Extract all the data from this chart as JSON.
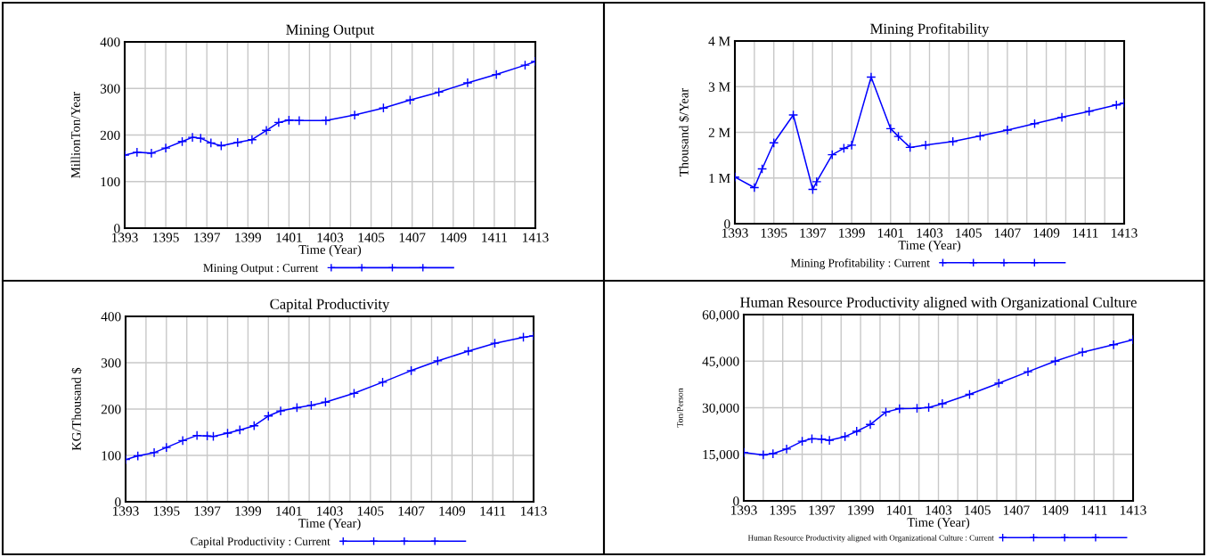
{
  "chart_data": [
    {
      "type": "line",
      "title": "Mining Output",
      "xlabel": "Time (Year)",
      "ylabel": "MillionTon/Year",
      "grid": true,
      "legend": "bottom",
      "marker": "cross",
      "line_style": "solid",
      "xlim": [
        1393,
        1413
      ],
      "xticks": [
        1393,
        {
          "value": 1394,
          "label": null
        },
        1395,
        {
          "value": 1396,
          "label": null
        },
        1397,
        {
          "value": 1398,
          "label": null
        },
        1399,
        {
          "value": 1400,
          "label": null
        },
        1401,
        {
          "value": 1402,
          "label": null
        },
        1403,
        {
          "value": 1404,
          "label": null
        },
        1405,
        {
          "value": 1406,
          "label": null
        },
        1407,
        {
          "value": 1408,
          "label": null
        },
        1409,
        {
          "value": 1410,
          "label": null
        },
        1411,
        {
          "value": 1412,
          "label": null
        },
        1413
      ],
      "ylim": [
        0,
        400
      ],
      "yticks": [
        0,
        100,
        200,
        300,
        400
      ],
      "series": [
        {
          "name": "Mining Output : Current",
          "color": "#0000ff",
          "x": [
            1393,
            1393.6,
            1394.3,
            1395,
            1395.8,
            1396.3,
            1396.7,
            1397.2,
            1397.7,
            1398.5,
            1399.2,
            1399.9,
            1400.5,
            1401,
            1401.5,
            1402.8,
            1404.2,
            1405.6,
            1406.9,
            1408.3,
            1409.7,
            1411.1,
            1412.5,
            1413
          ],
          "values": [
            157,
            163,
            161,
            172,
            186,
            195,
            193,
            183,
            177,
            184,
            190,
            210,
            227,
            232,
            231,
            231,
            243,
            258,
            275,
            292,
            312,
            330,
            350,
            358
          ]
        }
      ]
    },
    {
      "type": "line",
      "title": "Mining Profitability",
      "xlabel": "Time (Year)",
      "ylabel": "Thousand $/Year",
      "grid": true,
      "legend": "bottom",
      "marker": "cross",
      "line_style": "solid",
      "xlim": [
        1393,
        1413
      ],
      "xticks": [
        1393,
        {
          "value": 1394,
          "label": null
        },
        1395,
        {
          "value": 1396,
          "label": null
        },
        1397,
        {
          "value": 1398,
          "label": null
        },
        1399,
        {
          "value": 1400,
          "label": null
        },
        1401,
        {
          "value": 1402,
          "label": null
        },
        1403,
        {
          "value": 1404,
          "label": null
        },
        1405,
        {
          "value": 1406,
          "label": null
        },
        1407,
        {
          "value": 1408,
          "label": null
        },
        1409,
        {
          "value": 1410,
          "label": null
        },
        1411,
        {
          "value": 1412,
          "label": null
        },
        1413
      ],
      "ylim": [
        0,
        4000000
      ],
      "yticks": [
        0,
        {
          "value": 1000000,
          "label": "1 M"
        },
        {
          "value": 2000000,
          "label": "2 M"
        },
        {
          "value": 3000000,
          "label": "3 M"
        },
        {
          "value": 4000000,
          "label": "4 M"
        }
      ],
      "series": [
        {
          "name": "Mining Profitability : Current",
          "color": "#0000ff",
          "x": [
            1393,
            1394,
            1394.4,
            1395,
            1396,
            1397,
            1397.2,
            1398,
            1398.6,
            1399,
            1400,
            1401,
            1401.4,
            1402,
            1402.8,
            1404.2,
            1405.6,
            1407,
            1408.4,
            1409.8,
            1411.2,
            1412.6,
            1413
          ],
          "values": [
            1020000,
            790000,
            1200000,
            1770000,
            2380000,
            750000,
            920000,
            1510000,
            1650000,
            1720000,
            3210000,
            2080000,
            1910000,
            1670000,
            1720000,
            1800000,
            1920000,
            2050000,
            2190000,
            2330000,
            2460000,
            2600000,
            2640000
          ]
        }
      ]
    },
    {
      "type": "line",
      "title": "Capital Productivity",
      "xlabel": "Time (Year)",
      "ylabel": "KG/Thousand $",
      "grid": true,
      "legend": "bottom",
      "marker": "cross",
      "line_style": "solid",
      "xlim": [
        1393,
        1413
      ],
      "xticks": [
        1393,
        {
          "value": 1394,
          "label": null
        },
        1395,
        {
          "value": 1396,
          "label": null
        },
        1397,
        {
          "value": 1398,
          "label": null
        },
        1399,
        {
          "value": 1400,
          "label": null
        },
        1401,
        {
          "value": 1402,
          "label": null
        },
        1403,
        {
          "value": 1404,
          "label": null
        },
        1405,
        {
          "value": 1406,
          "label": null
        },
        1407,
        {
          "value": 1408,
          "label": null
        },
        1409,
        {
          "value": 1410,
          "label": null
        },
        1411,
        {
          "value": 1412,
          "label": null
        },
        1413
      ],
      "ylim": [
        0,
        400
      ],
      "yticks": [
        0,
        100,
        200,
        300,
        400
      ],
      "series": [
        {
          "name": "Capital Productivity : Current",
          "color": "#0000ff",
          "x": [
            1393,
            1393.6,
            1394.4,
            1395,
            1395.8,
            1396.5,
            1397,
            1397.3,
            1398,
            1398.6,
            1399.3,
            1400,
            1400.6,
            1401.4,
            1402.1,
            1402.8,
            1404.2,
            1405.6,
            1407,
            1408.3,
            1409.8,
            1411.1,
            1412.5,
            1413
          ],
          "values": [
            91,
            99,
            106,
            117,
            132,
            143,
            142,
            141,
            148,
            155,
            164,
            185,
            196,
            203,
            208,
            215,
            234,
            258,
            283,
            304,
            325,
            342,
            355,
            358
          ]
        }
      ]
    },
    {
      "type": "line",
      "title": "Human Resource Productivity aligned with Organizational Culture",
      "xlabel": "Time (Year)",
      "ylabel": "Ton/Person",
      "grid": true,
      "legend": "bottom",
      "marker": "cross",
      "line_style": "solid",
      "xlim": [
        1393,
        1413
      ],
      "xticks": [
        1393,
        {
          "value": 1394,
          "label": null
        },
        1395,
        {
          "value": 1396,
          "label": null
        },
        1397,
        {
          "value": 1398,
          "label": null
        },
        1399,
        {
          "value": 1400,
          "label": null
        },
        1401,
        {
          "value": 1402,
          "label": null
        },
        1403,
        {
          "value": 1404,
          "label": null
        },
        1405,
        {
          "value": 1406,
          "label": null
        },
        1407,
        {
          "value": 1408,
          "label": null
        },
        1409,
        {
          "value": 1410,
          "label": null
        },
        1411,
        {
          "value": 1412,
          "label": null
        },
        1413
      ],
      "ylim": [
        0,
        60000
      ],
      "yticks": [
        0,
        {
          "value": 15000,
          "label": "15,000"
        },
        {
          "value": 30000,
          "label": "30,000"
        },
        {
          "value": 45000,
          "label": "45,000"
        },
        {
          "value": 60000,
          "label": "60,000"
        }
      ],
      "series": [
        {
          "name": "Human Resource Productivity aligned with Organizational Culture : Current",
          "color": "#0000ff",
          "x": [
            1393,
            1394,
            1394.5,
            1395.2,
            1396,
            1396.5,
            1397,
            1397.4,
            1398.2,
            1398.8,
            1399.5,
            1400.3,
            1401,
            1401.9,
            1402.5,
            1403.2,
            1404.6,
            1406.1,
            1407.6,
            1409,
            1410.4,
            1412,
            1413
          ],
          "values": [
            15600,
            14800,
            15200,
            16700,
            19200,
            20000,
            19900,
            19500,
            20700,
            22400,
            24600,
            28600,
            29700,
            29800,
            30100,
            31300,
            34300,
            37900,
            41600,
            45000,
            47900,
            50300,
            51900
          ]
        }
      ]
    }
  ]
}
